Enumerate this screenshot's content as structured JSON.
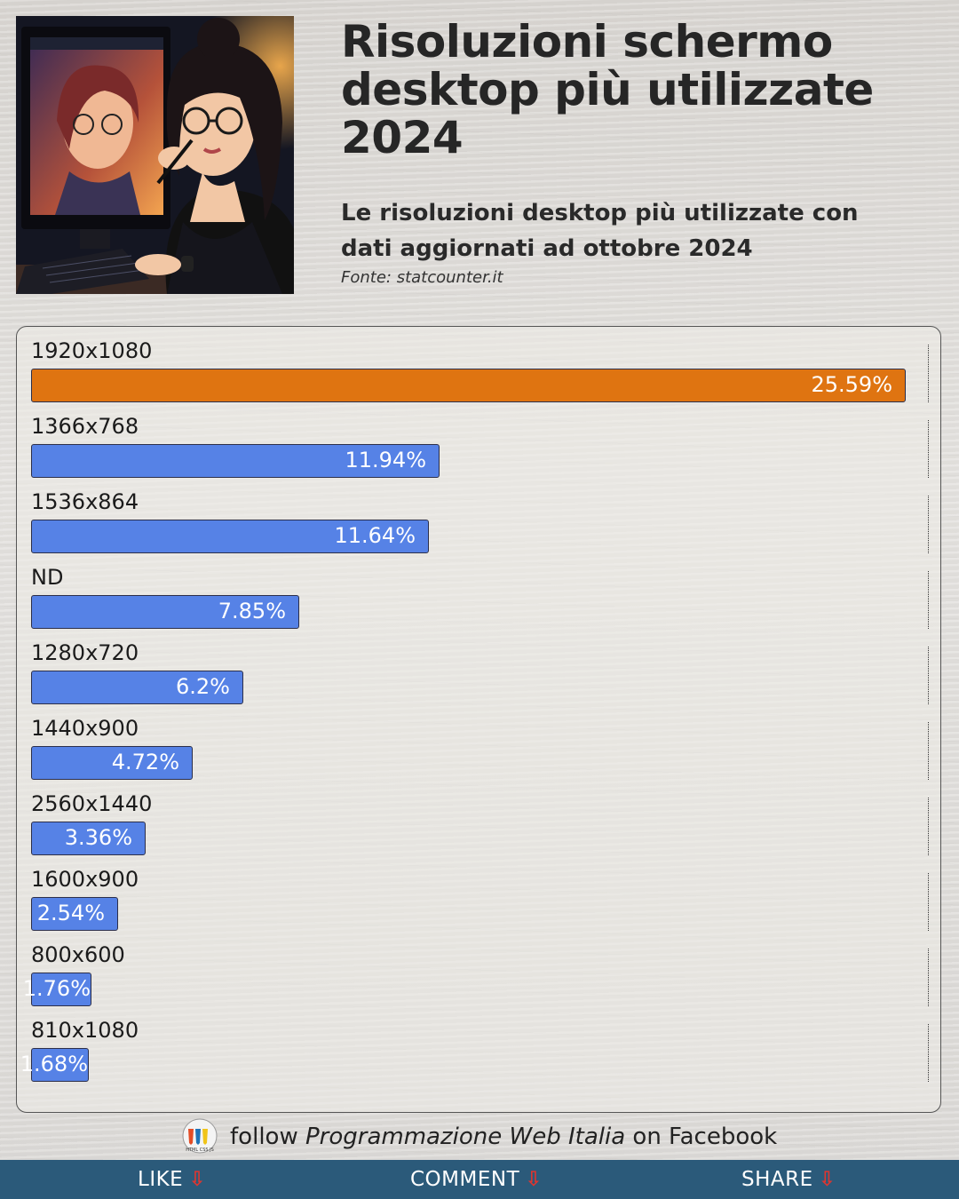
{
  "header": {
    "title": "Risoluzioni schermo desktop più utilizzate 2024",
    "subtitle": "Le risoluzioni desktop più utilizzate con dati aggiornati ad ottobre 2024",
    "source": "Fonte: statcounter.it"
  },
  "chart_data": {
    "type": "bar",
    "orientation": "horizontal",
    "title": "Risoluzioni schermo desktop più utilizzate 2024",
    "categories": [
      "1920x1080",
      "1366x768",
      "1536x864",
      "ND",
      "1280x720",
      "1440x900",
      "2560x1440",
      "1600x900",
      "800x600",
      "810x1080"
    ],
    "values": [
      25.59,
      11.94,
      11.64,
      7.85,
      6.2,
      4.72,
      3.36,
      2.54,
      1.76,
      1.68
    ],
    "value_labels": [
      "25.59%",
      "11.94%",
      "11.64%",
      "7.85%",
      "6.2%",
      "4.72%",
      "3.36%",
      "2.54%",
      "1.76%",
      "1.68%"
    ],
    "unit": "%",
    "xlim": [
      0,
      26
    ],
    "highlight_color": "#df7411",
    "bar_color": "#5682e6",
    "grid": false
  },
  "promo": {
    "prefix": "follow",
    "page_name": "Programmazione Web Italia",
    "suffix": "on Facebook",
    "badge_text": "HTML CSS JS"
  },
  "footer": {
    "like_label": "LIKE",
    "comment_label": "COMMENT",
    "share_label": "SHARE",
    "arrow_icon": "⇩"
  }
}
